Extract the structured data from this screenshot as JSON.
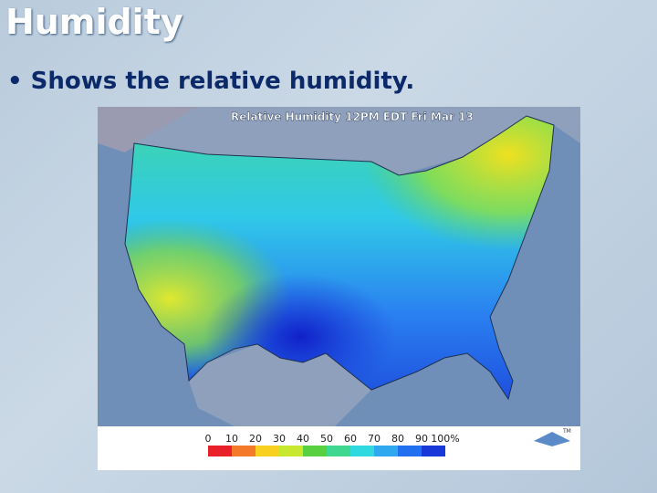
{
  "header": {
    "title": "Humidity"
  },
  "bullets": [
    "Shows the relative humidity."
  ],
  "map": {
    "title": "Relative Humidity 12PM EDT Fri Mar 13",
    "legend": {
      "labels": [
        "0",
        "10",
        "20",
        "30",
        "40",
        "50",
        "60",
        "70",
        "80",
        "90",
        "100%"
      ],
      "colors": [
        "#e8202a",
        "#f47a2a",
        "#f8d020",
        "#c8e830",
        "#58d040",
        "#40d890",
        "#30d8e0",
        "#30a8f0",
        "#2070f0",
        "#1838d8"
      ]
    },
    "logo_mark": "TM"
  }
}
